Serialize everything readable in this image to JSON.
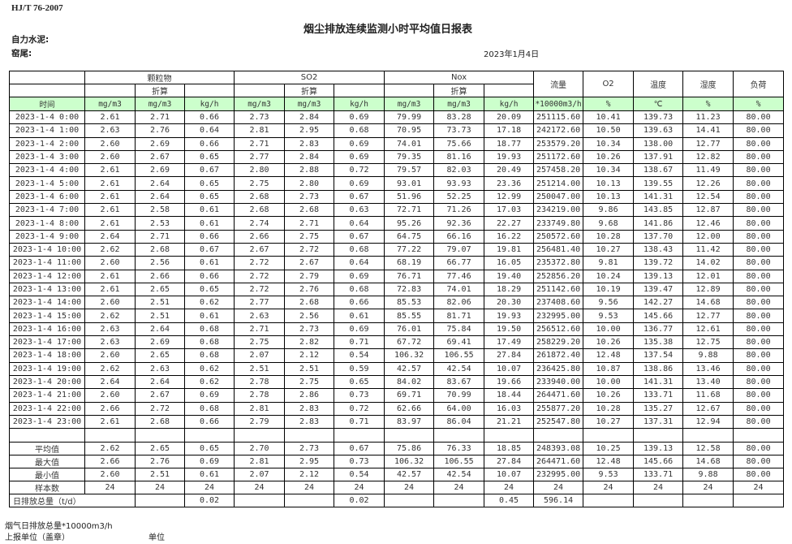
{
  "header": {
    "standard": "HJ/T  76-2007",
    "title": "烟尘排放连续监测小时平均值日报表",
    "company": "自力水泥:",
    "location": "窑尾:",
    "date": "2023年1月4日"
  },
  "table": {
    "groups": [
      "颗粒物",
      "SO2",
      "Nox"
    ],
    "converted_label": "折算",
    "single_headers": [
      "流量",
      "O2",
      "温度",
      "湿度",
      "负荷"
    ],
    "time_label": "时间",
    "units": [
      "mg/m3",
      "mg/m3",
      "kg/h",
      "mg/m3",
      "mg/m3",
      "kg/h",
      "mg/m3",
      "mg/m3",
      "kg/h",
      "*10000m3/h",
      "%",
      "℃",
      "%",
      "%"
    ],
    "colors": {
      "unit_row_bg": "#ccffcc"
    },
    "rows": [
      [
        "2023-1-4 0:00",
        "2.61",
        "2.71",
        "0.66",
        "2.73",
        "2.84",
        "0.69",
        "79.99",
        "83.28",
        "20.09",
        "251115.60",
        "10.41",
        "139.73",
        "11.23",
        "80.00"
      ],
      [
        "2023-1-4 1:00",
        "2.63",
        "2.76",
        "0.64",
        "2.81",
        "2.95",
        "0.68",
        "70.95",
        "73.73",
        "17.18",
        "242172.60",
        "10.50",
        "139.63",
        "14.41",
        "80.00"
      ],
      [
        "2023-1-4 2:00",
        "2.60",
        "2.69",
        "0.66",
        "2.71",
        "2.83",
        "0.69",
        "74.01",
        "75.66",
        "18.77",
        "253579.20",
        "10.34",
        "138.00",
        "12.77",
        "80.00"
      ],
      [
        "2023-1-4 3:00",
        "2.60",
        "2.67",
        "0.65",
        "2.77",
        "2.84",
        "0.69",
        "79.35",
        "81.16",
        "19.93",
        "251172.60",
        "10.26",
        "137.91",
        "12.82",
        "80.00"
      ],
      [
        "2023-1-4 4:00",
        "2.61",
        "2.69",
        "0.67",
        "2.80",
        "2.88",
        "0.72",
        "79.57",
        "82.03",
        "20.49",
        "257458.20",
        "10.34",
        "138.67",
        "11.49",
        "80.00"
      ],
      [
        "2023-1-4 5:00",
        "2.61",
        "2.64",
        "0.65",
        "2.75",
        "2.80",
        "0.69",
        "93.01",
        "93.93",
        "23.36",
        "251214.00",
        "10.13",
        "139.55",
        "12.26",
        "80.00"
      ],
      [
        "2023-1-4 6:00",
        "2.61",
        "2.64",
        "0.65",
        "2.68",
        "2.73",
        "0.67",
        "51.96",
        "52.25",
        "12.99",
        "250047.00",
        "10.13",
        "141.31",
        "12.54",
        "80.00"
      ],
      [
        "2023-1-4 7:00",
        "2.61",
        "2.58",
        "0.61",
        "2.68",
        "2.68",
        "0.63",
        "72.71",
        "71.26",
        "17.03",
        "234219.00",
        "9.86",
        "143.85",
        "12.87",
        "80.00"
      ],
      [
        "2023-1-4 8:00",
        "2.61",
        "2.53",
        "0.61",
        "2.74",
        "2.71",
        "0.64",
        "95.26",
        "92.36",
        "22.27",
        "233749.80",
        "9.68",
        "141.86",
        "12.46",
        "80.00"
      ],
      [
        "2023-1-4 9:00",
        "2.64",
        "2.71",
        "0.66",
        "2.66",
        "2.75",
        "0.67",
        "64.75",
        "66.16",
        "16.22",
        "250572.60",
        "10.28",
        "137.70",
        "12.00",
        "80.00"
      ],
      [
        "2023-1-4 10:00",
        "2.62",
        "2.68",
        "0.67",
        "2.67",
        "2.72",
        "0.68",
        "77.22",
        "79.07",
        "19.81",
        "256481.40",
        "10.27",
        "138.43",
        "11.42",
        "80.00"
      ],
      [
        "2023-1-4 11:00",
        "2.60",
        "2.56",
        "0.61",
        "2.72",
        "2.67",
        "0.64",
        "68.19",
        "66.77",
        "16.05",
        "235372.80",
        "9.81",
        "139.72",
        "14.02",
        "80.00"
      ],
      [
        "2023-1-4 12:00",
        "2.61",
        "2.66",
        "0.66",
        "2.72",
        "2.79",
        "0.69",
        "76.71",
        "77.46",
        "19.40",
        "252856.20",
        "10.24",
        "139.13",
        "12.01",
        "80.00"
      ],
      [
        "2023-1-4 13:00",
        "2.61",
        "2.65",
        "0.65",
        "2.72",
        "2.76",
        "0.68",
        "72.83",
        "74.01",
        "18.29",
        "251142.60",
        "10.19",
        "139.47",
        "12.89",
        "80.00"
      ],
      [
        "2023-1-4 14:00",
        "2.60",
        "2.51",
        "0.62",
        "2.77",
        "2.68",
        "0.66",
        "85.53",
        "82.06",
        "20.30",
        "237408.60",
        "9.56",
        "142.27",
        "14.68",
        "80.00"
      ],
      [
        "2023-1-4 15:00",
        "2.62",
        "2.51",
        "0.61",
        "2.63",
        "2.56",
        "0.61",
        "85.55",
        "81.71",
        "19.93",
        "232995.00",
        "9.53",
        "145.66",
        "12.77",
        "80.00"
      ],
      [
        "2023-1-4 16:00",
        "2.63",
        "2.64",
        "0.68",
        "2.71",
        "2.73",
        "0.69",
        "76.01",
        "75.84",
        "19.50",
        "256512.60",
        "10.00",
        "136.77",
        "12.61",
        "80.00"
      ],
      [
        "2023-1-4 17:00",
        "2.63",
        "2.69",
        "0.68",
        "2.75",
        "2.82",
        "0.71",
        "67.72",
        "69.41",
        "17.49",
        "258229.20",
        "10.26",
        "135.38",
        "12.75",
        "80.00"
      ],
      [
        "2023-1-4 18:00",
        "2.60",
        "2.65",
        "0.68",
        "2.07",
        "2.12",
        "0.54",
        "106.32",
        "106.55",
        "27.84",
        "261872.40",
        "12.48",
        "137.54",
        "9.88",
        "80.00"
      ],
      [
        "2023-1-4 19:00",
        "2.62",
        "2.63",
        "0.62",
        "2.51",
        "2.51",
        "0.59",
        "42.57",
        "42.54",
        "10.07",
        "236425.80",
        "10.87",
        "138.86",
        "13.46",
        "80.00"
      ],
      [
        "2023-1-4 20:00",
        "2.64",
        "2.64",
        "0.62",
        "2.78",
        "2.75",
        "0.65",
        "84.02",
        "83.67",
        "19.66",
        "233940.00",
        "10.00",
        "141.31",
        "13.40",
        "80.00"
      ],
      [
        "2023-1-4 21:00",
        "2.60",
        "2.67",
        "0.69",
        "2.78",
        "2.86",
        "0.73",
        "69.71",
        "70.99",
        "18.44",
        "264471.60",
        "10.26",
        "133.71",
        "11.68",
        "80.00"
      ],
      [
        "2023-1-4 22:00",
        "2.66",
        "2.72",
        "0.68",
        "2.81",
        "2.83",
        "0.72",
        "62.66",
        "64.00",
        "16.03",
        "255877.20",
        "10.28",
        "135.27",
        "12.67",
        "80.00"
      ],
      [
        "2023-1-4 23:00",
        "2.61",
        "2.68",
        "0.66",
        "2.79",
        "2.83",
        "0.71",
        "83.97",
        "86.04",
        "21.21",
        "252547.80",
        "10.27",
        "137.31",
        "12.94",
        "80.00"
      ]
    ],
    "summary": [
      [
        "平均值",
        "2.62",
        "2.65",
        "0.65",
        "2.70",
        "2.73",
        "0.67",
        "75.86",
        "76.33",
        "18.85",
        "248393.08",
        "10.25",
        "139.13",
        "12.58",
        "80.00"
      ],
      [
        "最大值",
        "2.66",
        "2.76",
        "0.69",
        "2.81",
        "2.95",
        "0.73",
        "106.32",
        "106.55",
        "27.84",
        "264471.60",
        "12.48",
        "145.66",
        "14.68",
        "80.00"
      ],
      [
        "最小值",
        "2.60",
        "2.51",
        "0.61",
        "2.07",
        "2.12",
        "0.54",
        "42.57",
        "42.54",
        "10.07",
        "232995.00",
        "9.53",
        "133.71",
        "9.88",
        "80.00"
      ],
      [
        "样本数",
        "24",
        "24",
        "24",
        "24",
        "24",
        "24",
        "24",
        "24",
        "24",
        "24",
        "24",
        "24",
        "24",
        "24"
      ]
    ],
    "daily_total": {
      "label": "日排放总量（t/d）",
      "values": [
        "",
        "0.02",
        "",
        "",
        "0.02",
        "",
        "",
        "0.45",
        "596.14",
        "",
        "",
        "",
        ""
      ]
    }
  },
  "footer": {
    "flue_gas_total": "烟气日排放总量*10000m3/h",
    "reporting_unit": "上报单位（盖章）",
    "unit": "单位"
  }
}
